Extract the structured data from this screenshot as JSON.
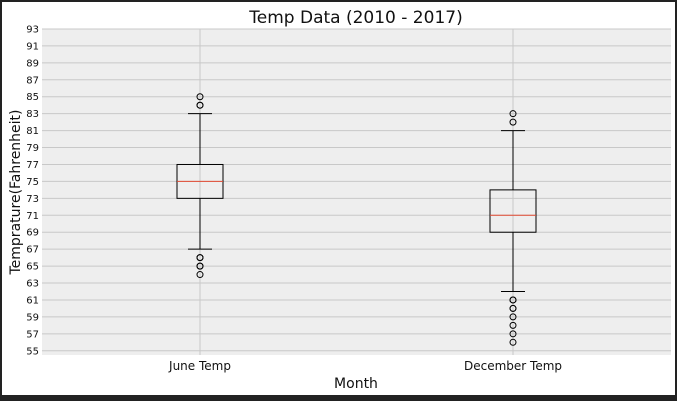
{
  "chart_data": {
    "type": "box",
    "title": "Temp Data (2010 - 2017)",
    "xlabel": "Month",
    "ylabel": "Temprature(Fahrenheit)",
    "ylim": [
      54.5,
      93
    ],
    "yticks": [
      55,
      57,
      59,
      61,
      63,
      65,
      67,
      69,
      71,
      73,
      75,
      77,
      79,
      81,
      83,
      85,
      87,
      89,
      91,
      93
    ],
    "grid": true,
    "categories": [
      "June Temp",
      "December Temp"
    ],
    "boxes": [
      {
        "name": "June Temp",
        "whisker_low": 67,
        "q1": 73,
        "median": 75,
        "q3": 77,
        "whisker_high": 83,
        "outliers": [
          64,
          65,
          65,
          66,
          66,
          84,
          84,
          85
        ]
      },
      {
        "name": "December Temp",
        "whisker_low": 62,
        "q1": 69,
        "median": 71,
        "q3": 74,
        "whisker_high": 81,
        "outliers": [
          56,
          57,
          58,
          59,
          60,
          60,
          61,
          61,
          82,
          83
        ]
      }
    ],
    "colors": {
      "background": "#eeeeee",
      "grid": "#c8c8c8",
      "box": "#000000",
      "median": "#e24a33"
    }
  }
}
